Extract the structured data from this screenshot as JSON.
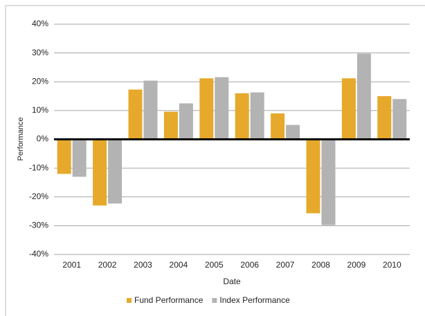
{
  "chart_data": {
    "type": "bar",
    "x_label": "Date",
    "y_label": "Performance",
    "categories": [
      "2001",
      "2002",
      "2003",
      "2004",
      "2005",
      "2006",
      "2007",
      "2008",
      "2009",
      "2010"
    ],
    "series": [
      {
        "name": "Fund Performance",
        "color": "#e6a92b",
        "values": [
          -12,
          -23,
          17.3,
          9.6,
          21.2,
          16,
          9,
          -25.7,
          21.2,
          15
        ]
      },
      {
        "name": "Index Performance",
        "color": "#b3b3b3",
        "values": [
          -13,
          -22.3,
          20.4,
          12.5,
          21.6,
          16.3,
          5,
          -29.8,
          29.8,
          14
        ]
      }
    ],
    "ylim": [
      -40,
      40
    ],
    "yticks": [
      {
        "value": -40,
        "label": "-40%"
      },
      {
        "value": -30,
        "label": "-30%"
      },
      {
        "value": -20,
        "label": "-20%"
      },
      {
        "value": -10,
        "label": "-10%"
      },
      {
        "value": 0,
        "label": "0%"
      },
      {
        "value": 10,
        "label": "10%"
      },
      {
        "value": 20,
        "label": "20%"
      },
      {
        "value": 30,
        "label": "30%"
      },
      {
        "value": 40,
        "label": "40%"
      }
    ],
    "grid": true,
    "legend": "bottom"
  }
}
